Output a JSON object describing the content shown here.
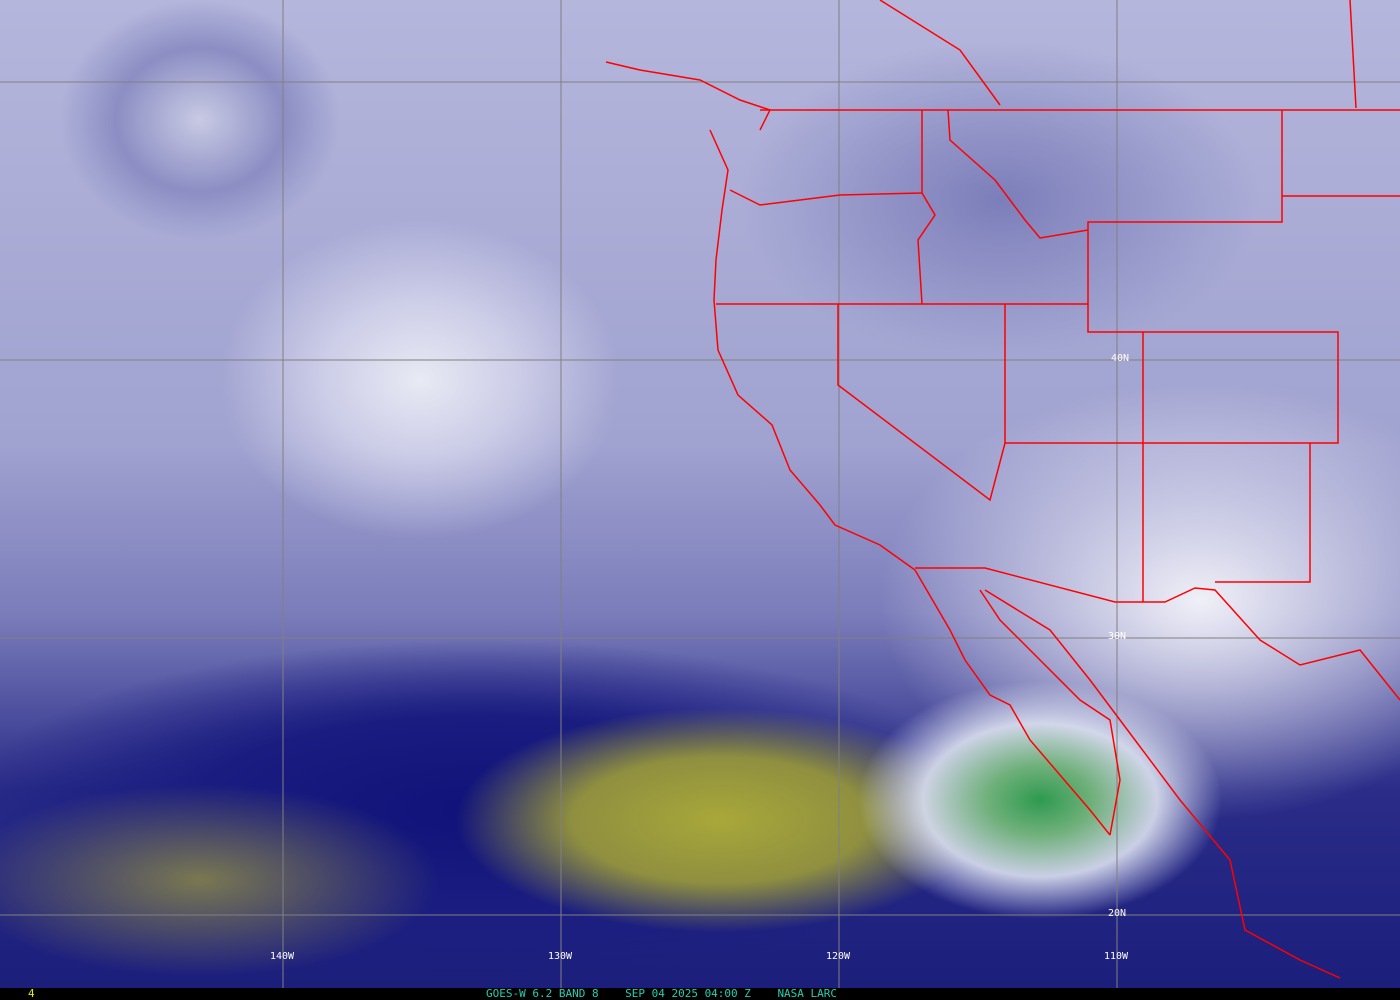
{
  "image": {
    "type": "GOES-West water vapor satellite image",
    "colors": {
      "grid": "#808080",
      "borders": "#ff0000",
      "caption": "#20d0b0",
      "frame": "#e8e800"
    }
  },
  "grid_labels": {
    "lon": [
      "140W",
      "130W",
      "120W",
      "110W"
    ],
    "lat": [
      "40N",
      "30N",
      "20N"
    ]
  },
  "footer": {
    "frame_number": "4",
    "satellite": "GOES-W 6.2 BAND 8",
    "datetime": "SEP 04 2025 04:00 Z",
    "source": "NASA LARC"
  }
}
